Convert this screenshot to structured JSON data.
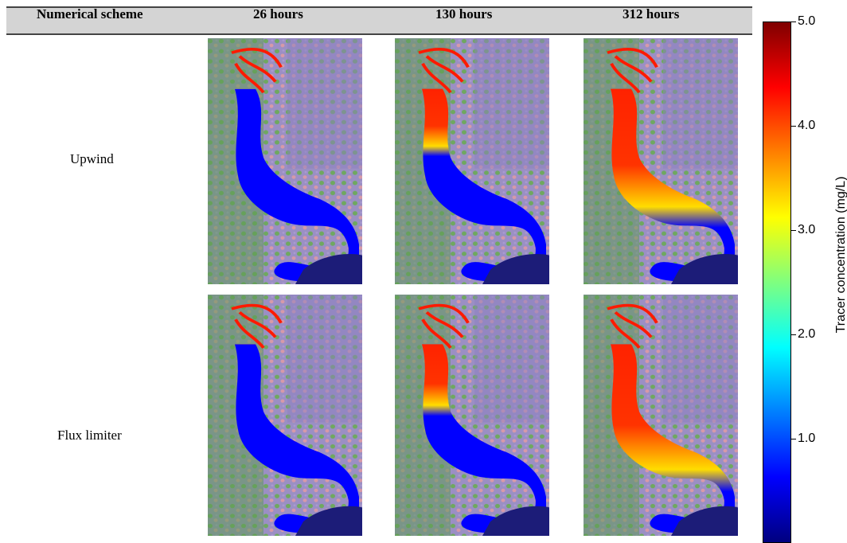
{
  "header": {
    "scheme_label": "Numerical scheme",
    "columns": [
      "26 hours",
      "130 hours",
      "312 hours"
    ]
  },
  "rows": [
    {
      "label": "Upwind",
      "plume_extent": [
        0.0,
        0.35,
        0.72
      ]
    },
    {
      "label": "Flux limiter",
      "plume_extent": [
        0.0,
        0.38,
        0.78
      ]
    }
  ],
  "colorbar": {
    "title": "Tracer concentration (mg/L)",
    "min": 0.0,
    "max": 5.0,
    "ticks": [
      "5.0",
      "4.0",
      "3.0",
      "2.0",
      "1.0"
    ],
    "colormap": [
      "#00007f",
      "#0000ff",
      "#007fff",
      "#00ffff",
      "#7fff7f",
      "#ffff00",
      "#ff7f00",
      "#ff0000",
      "#7f0000"
    ]
  }
}
